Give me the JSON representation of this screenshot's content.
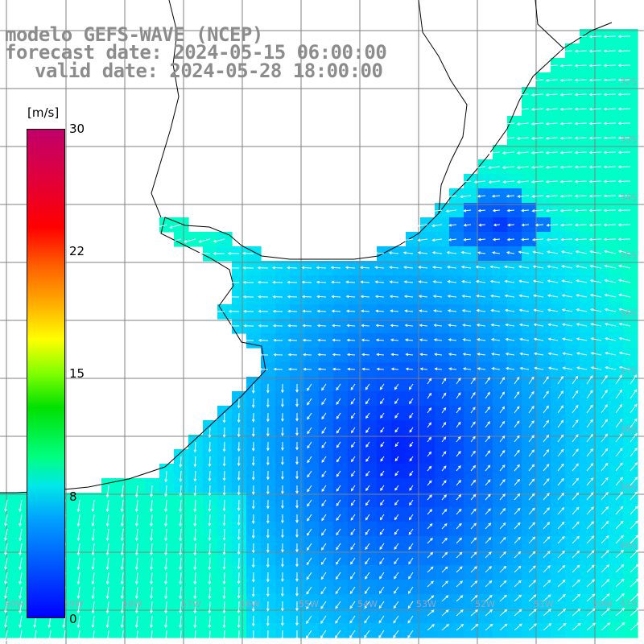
{
  "title": {
    "line1": "modelo GEFS-WAVE (NCEP)",
    "line2": "forecast date: 2024-05-15 06:00:00",
    "line3": "valid date: 2024-05-28 18:00:00"
  },
  "colorbar": {
    "unit": "[m/s]",
    "ticks": [
      "30",
      "22",
      "15",
      "8",
      "0"
    ],
    "colors": [
      "#0000ff",
      "#0050ff",
      "#00a0ff",
      "#00e8e8",
      "#00ff80",
      "#00e000",
      "#80ff00",
      "#ffff00",
      "#ffb000",
      "#ff6000",
      "#ff0000",
      "#e0003c",
      "#c0006a"
    ]
  },
  "lat_labels": [
    "32S",
    "33S",
    "34S",
    "35S",
    "36S",
    "37S",
    "38S",
    "39S",
    "40S",
    "41S"
  ],
  "lon_labels": [
    "60W",
    "59W",
    "58W",
    "57W",
    "56W",
    "55W",
    "54W",
    "53W",
    "52W",
    "51W",
    "50W"
  ],
  "colors": {
    "land": "#ffffff",
    "coast": "#000000",
    "grid": "#808080",
    "vector": "#ffffff",
    "title": "#8c8c8c"
  }
}
